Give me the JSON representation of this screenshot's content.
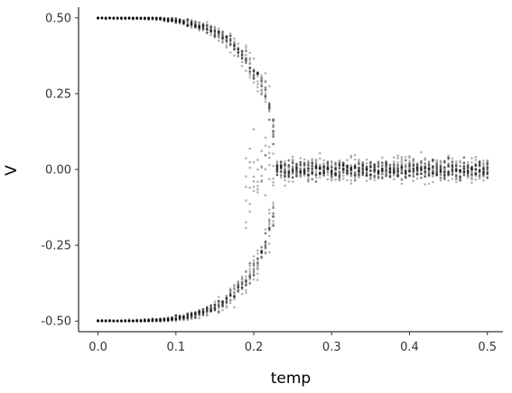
{
  "chart_data": {
    "type": "scatter",
    "xlabel": "temp",
    "ylabel": "V",
    "xlim": [
      -0.025,
      0.52
    ],
    "ylim": [
      -0.535,
      0.535
    ],
    "xticks": [
      0.0,
      0.1,
      0.2,
      0.3,
      0.4,
      0.5
    ],
    "xtick_labels": [
      "0.0",
      "0.1",
      "0.2",
      "0.3",
      "0.4",
      "0.5"
    ],
    "yticks": [
      -0.5,
      -0.25,
      0.0,
      0.25,
      0.5
    ],
    "ytick_labels": [
      "-0.50",
      "-0.25",
      "0.00",
      "0.25",
      "0.50"
    ],
    "grid": false,
    "point_color": "#000000",
    "point_opacity": 0.3,
    "temp_range": [
      0.0,
      0.5
    ],
    "temp_step": 0.005,
    "critical_temp": 0.23,
    "series": [
      {
        "description": "order parameter V vs temperature: two symmetric branches at ±0.5 that collapse to 0 near temp ≈ 0.23, then fluctuate around 0 within about ±0.08",
        "envelope": [
          {
            "temp": 0.0,
            "upper": 0.5,
            "lower": -0.5
          },
          {
            "temp": 0.1,
            "upper": 0.485,
            "lower": -0.485
          },
          {
            "temp": 0.15,
            "upper": 0.43,
            "lower": -0.43
          },
          {
            "temp": 0.2,
            "upper": 0.3,
            "lower": -0.3
          },
          {
            "temp": 0.23,
            "upper": 0.1,
            "lower": -0.1
          },
          {
            "temp": 0.3,
            "upper": 0.08,
            "lower": -0.08
          },
          {
            "temp": 0.4,
            "upper": 0.08,
            "lower": -0.08
          },
          {
            "temp": 0.5,
            "upper": 0.07,
            "lower": -0.07
          }
        ]
      }
    ]
  }
}
